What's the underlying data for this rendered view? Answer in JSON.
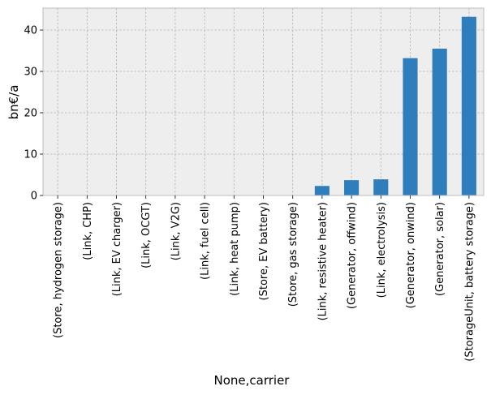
{
  "chart_data": {
    "type": "bar",
    "xlabel": "None,carrier",
    "ylabel": "bn€/a",
    "ylim": [
      0,
      45.3
    ],
    "yticks": [
      0,
      10,
      20,
      30,
      40
    ],
    "grid": true,
    "categories": [
      "(Store, hydrogen storage)",
      "(Link, CHP)",
      "(Link, EV charger)",
      "(Link, OCGT)",
      "(Link, V2G)",
      "(Link, fuel cell)",
      "(Link, heat pump)",
      "(Store, EV battery)",
      "(Store, gas storage)",
      "(Link, resistive heater)",
      "(Generator, offwind)",
      "(Link, electrolysis)",
      "(Generator, onwind)",
      "(Generator, solar)",
      "(StorageUnit, battery storage)"
    ],
    "values": [
      0,
      0,
      0,
      0,
      0,
      0,
      0,
      0,
      0,
      2.3,
      3.7,
      3.9,
      33.2,
      35.5,
      43.2
    ],
    "colors": {
      "bar": "#2e7dbc",
      "plot_background": "#eeeeee",
      "grid": "#b2b2b2",
      "frame": "#bcbcbc"
    }
  }
}
